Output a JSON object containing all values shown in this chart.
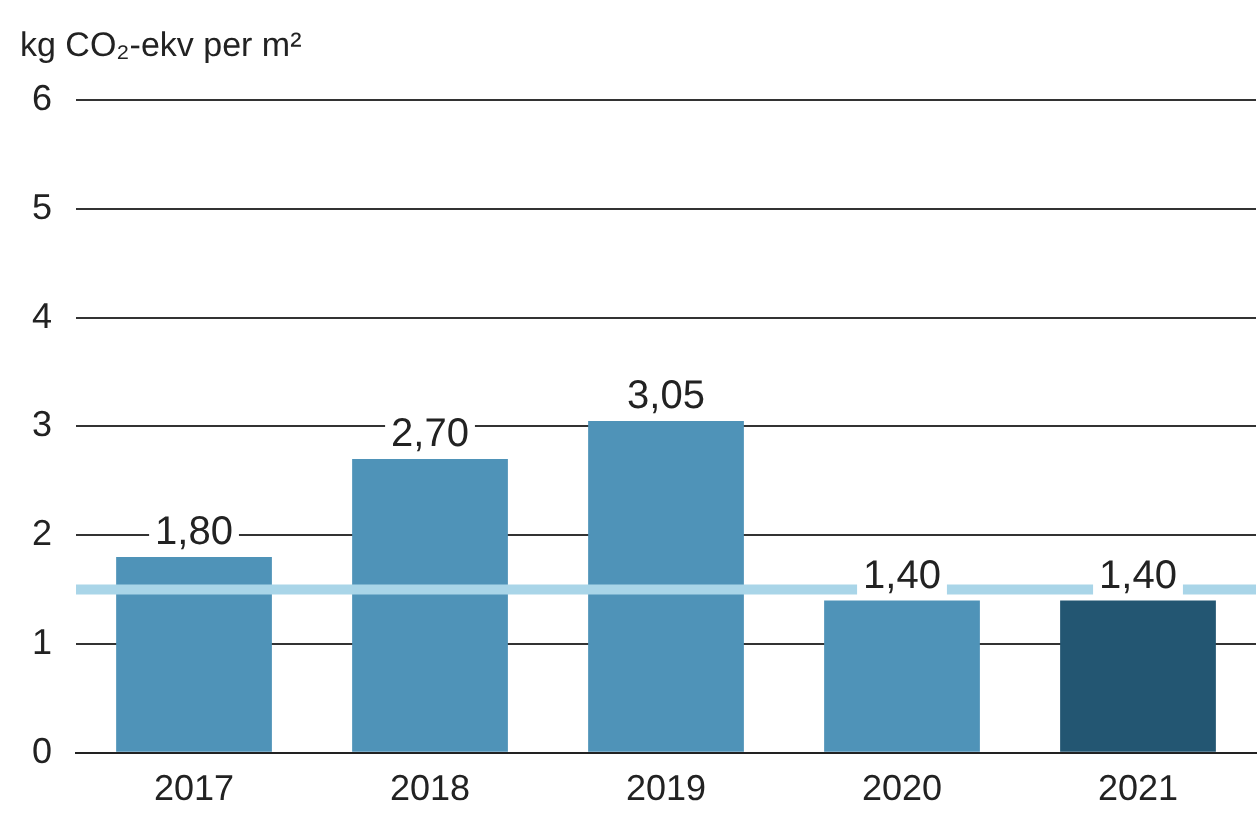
{
  "chart_data": {
    "type": "bar",
    "ylabel": "kg CO₂-ekv per m²",
    "categories": [
      "2017",
      "2018",
      "2019",
      "2020",
      "2021"
    ],
    "values": [
      1.8,
      2.7,
      3.05,
      1.4,
      1.4
    ],
    "colors": [
      "#4f93b8",
      "#4f93b8",
      "#4f93b8",
      "#4f93b8",
      "#235672"
    ],
    "value_labels": [
      "1,80",
      "2,70",
      "3,05",
      "1,40",
      "1,40"
    ],
    "ylim": [
      0,
      6
    ],
    "yticks": [
      0,
      1,
      2,
      3,
      4,
      5,
      6
    ],
    "grid": "y",
    "ref_lines": [
      {
        "axis": "y",
        "value": 1.5,
        "color": "#a9d5e8"
      }
    ]
  }
}
